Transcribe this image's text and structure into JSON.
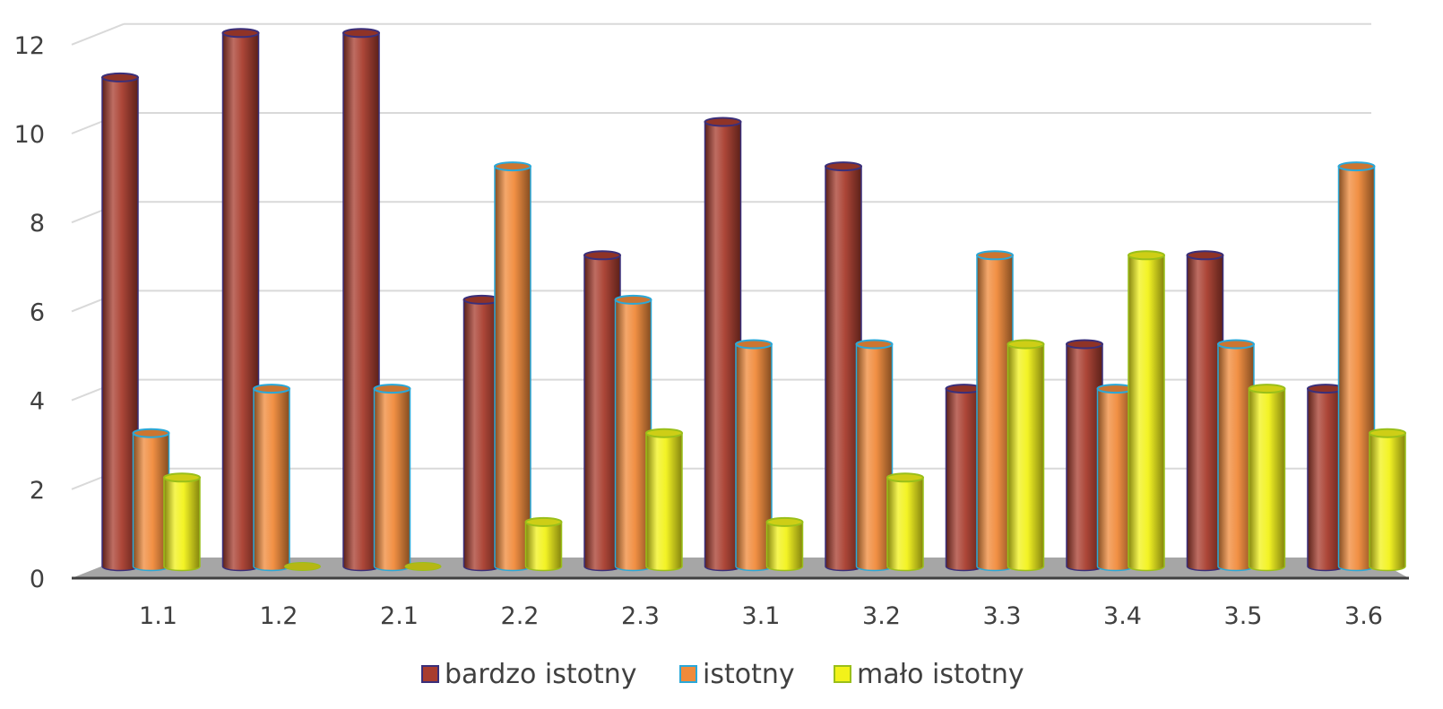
{
  "chart_data": {
    "type": "bar",
    "categories": [
      "1.1",
      "1.2",
      "2.1",
      "2.2",
      "2.3",
      "3.1",
      "3.2",
      "3.3",
      "3.4",
      "3.5",
      "3.6"
    ],
    "series": [
      {
        "name": "bardzo istotny",
        "values": [
          11,
          12,
          12,
          6,
          7,
          10,
          9,
          4,
          5,
          7,
          4
        ],
        "color": "#a83c2e",
        "edge": "#3a2f7a"
      },
      {
        "name": "istotny",
        "values": [
          3,
          4,
          4,
          9,
          6,
          5,
          5,
          7,
          4,
          5,
          9
        ],
        "color": "#f08a3a",
        "edge": "#2aa8d8"
      },
      {
        "name": "mało istotny",
        "values": [
          2,
          0,
          0,
          1,
          3,
          1,
          2,
          5,
          7,
          4,
          3
        ],
        "color": "#f2f21a",
        "edge": "#9abf1a"
      }
    ],
    "yticks": [
      "0",
      "2",
      "4",
      "6",
      "8",
      "10",
      "12"
    ],
    "ylim": [
      0,
      12
    ],
    "grid": true,
    "legend_position": "bottom",
    "style": "3d-cylinder"
  }
}
